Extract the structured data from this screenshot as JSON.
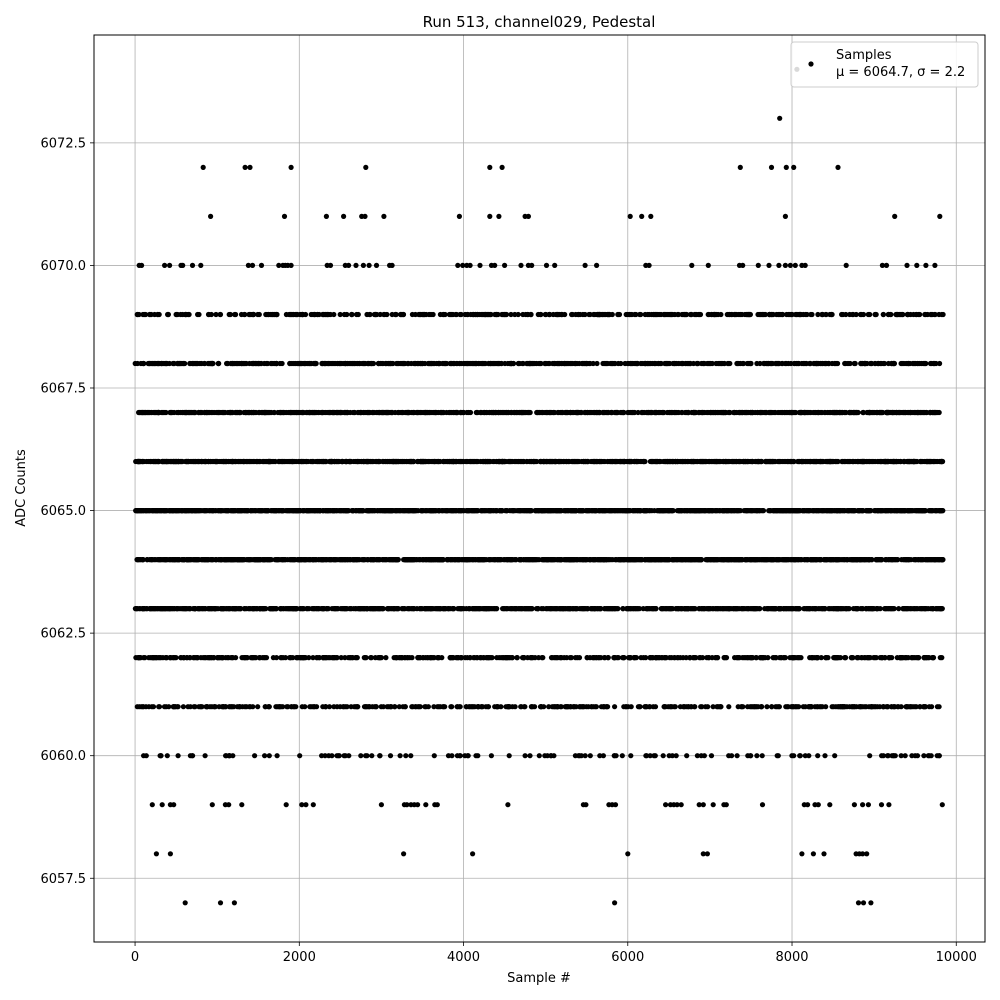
{
  "chart_data": {
    "type": "scatter",
    "title": "Run 513, channel029, Pedestal",
    "xlabel": "Sample #",
    "ylabel": "ADC Counts",
    "xlim": [
      -500,
      10350
    ],
    "ylim": [
      6056.2,
      6074.7
    ],
    "xticks": [
      0,
      2000,
      4000,
      6000,
      8000,
      10000
    ],
    "xtick_labels": [
      "0",
      "2000",
      "4000",
      "6000",
      "8000",
      "10000"
    ],
    "yticks": [
      6057.5,
      6060.0,
      6062.5,
      6065.0,
      6067.5,
      6070.0,
      6072.5
    ],
    "ytick_labels": [
      "6057.5",
      "6060.0",
      "6062.5",
      "6065.0",
      "6067.5",
      "6070.0",
      "6072.5"
    ],
    "grid": true,
    "legend_position": "upper right",
    "marker_color": "#000000",
    "series": [
      {
        "name": "Samples",
        "legend_line2": "μ = 6064.7, σ = 2.2",
        "mean": 6064.7,
        "sigma": 2.2,
        "n_samples": 9840,
        "points": [
          [
            50,
            6070
          ],
          [
            80,
            6070
          ],
          [
            360,
            6070
          ],
          [
            420,
            6070
          ],
          [
            560,
            6070
          ],
          [
            580,
            6070
          ],
          [
            700,
            6070
          ],
          [
            800,
            6070
          ],
          [
            1380,
            6070
          ],
          [
            1430,
            6070
          ],
          [
            1540,
            6070
          ],
          [
            1750,
            6070
          ],
          [
            1800,
            6070
          ],
          [
            1830,
            6070
          ],
          [
            1860,
            6070
          ],
          [
            1900,
            6070
          ],
          [
            2340,
            6070
          ],
          [
            2380,
            6070
          ],
          [
            2560,
            6070
          ],
          [
            2600,
            6070
          ],
          [
            2690,
            6070
          ],
          [
            2780,
            6070
          ],
          [
            2850,
            6070
          ],
          [
            2940,
            6070
          ],
          [
            3100,
            6070
          ],
          [
            3130,
            6070
          ],
          [
            3930,
            6070
          ],
          [
            3990,
            6070
          ],
          [
            4040,
            6070
          ],
          [
            4080,
            6070
          ],
          [
            4200,
            6070
          ],
          [
            4340,
            6070
          ],
          [
            4380,
            6070
          ],
          [
            4500,
            6070
          ],
          [
            4700,
            6070
          ],
          [
            4790,
            6070
          ],
          [
            4830,
            6070
          ],
          [
            5010,
            6070
          ],
          [
            5110,
            6070
          ],
          [
            5480,
            6070
          ],
          [
            5620,
            6070
          ],
          [
            6220,
            6070
          ],
          [
            6260,
            6070
          ],
          [
            6780,
            6070
          ],
          [
            6980,
            6070
          ],
          [
            7360,
            6070
          ],
          [
            7400,
            6070
          ],
          [
            7590,
            6070
          ],
          [
            7720,
            6070
          ],
          [
            7840,
            6070
          ],
          [
            7920,
            6070
          ],
          [
            7980,
            6070
          ],
          [
            8040,
            6070
          ],
          [
            8120,
            6070
          ],
          [
            8160,
            6070
          ],
          [
            8660,
            6070
          ],
          [
            9100,
            6070
          ],
          [
            9150,
            6070
          ],
          [
            9400,
            6070
          ],
          [
            9520,
            6070
          ],
          [
            9630,
            6070
          ],
          [
            9740,
            6070
          ],
          [
            920,
            6071
          ],
          [
            1820,
            6071
          ],
          [
            2330,
            6071
          ],
          [
            2540,
            6071
          ],
          [
            2760,
            6071
          ],
          [
            2800,
            6071
          ],
          [
            3030,
            6071
          ],
          [
            3950,
            6071
          ],
          [
            4320,
            6071
          ],
          [
            4430,
            6071
          ],
          [
            4750,
            6071
          ],
          [
            4790,
            6071
          ],
          [
            6030,
            6071
          ],
          [
            6170,
            6071
          ],
          [
            6280,
            6071
          ],
          [
            7920,
            6071
          ],
          [
            9250,
            6071
          ],
          [
            9800,
            6071
          ],
          [
            830,
            6072
          ],
          [
            1340,
            6072
          ],
          [
            1400,
            6072
          ],
          [
            1900,
            6072
          ],
          [
            2810,
            6072
          ],
          [
            4320,
            6072
          ],
          [
            4470,
            6072
          ],
          [
            7370,
            6072
          ],
          [
            7750,
            6072
          ],
          [
            7930,
            6072
          ],
          [
            8020,
            6072
          ],
          [
            8560,
            6072
          ],
          [
            7850,
            6073
          ],
          [
            8060,
            6074
          ],
          [
            260,
            6058
          ],
          [
            430,
            6058
          ],
          [
            3270,
            6058
          ],
          [
            4110,
            6058
          ],
          [
            6000,
            6058
          ],
          [
            6920,
            6058
          ],
          [
            6970,
            6058
          ],
          [
            8120,
            6058
          ],
          [
            8260,
            6058
          ],
          [
            8390,
            6058
          ],
          [
            8780,
            6058
          ],
          [
            8820,
            6058
          ],
          [
            8860,
            6058
          ],
          [
            8910,
            6058
          ],
          [
            610,
            6057
          ],
          [
            1040,
            6057
          ],
          [
            1210,
            6057
          ],
          [
            5840,
            6057
          ],
          [
            8810,
            6057
          ],
          [
            8870,
            6057
          ],
          [
            8960,
            6057
          ],
          [
            210,
            6059
          ],
          [
            330,
            6059
          ],
          [
            430,
            6059
          ],
          [
            470,
            6059
          ],
          [
            940,
            6059
          ],
          [
            1100,
            6059
          ],
          [
            1140,
            6059
          ],
          [
            1300,
            6059
          ],
          [
            1840,
            6059
          ],
          [
            2030,
            6059
          ],
          [
            2080,
            6059
          ],
          [
            2170,
            6059
          ],
          [
            3000,
            6059
          ],
          [
            3280,
            6059
          ],
          [
            3310,
            6059
          ],
          [
            3360,
            6059
          ],
          [
            3400,
            6059
          ],
          [
            3440,
            6059
          ],
          [
            3540,
            6059
          ],
          [
            3650,
            6059
          ],
          [
            3680,
            6059
          ],
          [
            4540,
            6059
          ],
          [
            5460,
            6059
          ],
          [
            5490,
            6059
          ],
          [
            5770,
            6059
          ],
          [
            5810,
            6059
          ],
          [
            5850,
            6059
          ],
          [
            6460,
            6059
          ],
          [
            6520,
            6059
          ],
          [
            6560,
            6059
          ],
          [
            6600,
            6059
          ],
          [
            6650,
            6059
          ],
          [
            6870,
            6059
          ],
          [
            6920,
            6059
          ],
          [
            7040,
            6059
          ],
          [
            7170,
            6059
          ],
          [
            7200,
            6059
          ],
          [
            7640,
            6059
          ],
          [
            8150,
            6059
          ],
          [
            8190,
            6059
          ],
          [
            8280,
            6059
          ],
          [
            8320,
            6059
          ],
          [
            8460,
            6059
          ],
          [
            8760,
            6059
          ],
          [
            8860,
            6059
          ],
          [
            8930,
            6059
          ],
          [
            9090,
            6059
          ],
          [
            9180,
            6059
          ],
          [
            9830,
            6059
          ]
        ],
        "dense_rows": [
          {
            "y": 6060,
            "count": 130
          },
          {
            "y": 6061,
            "count": 420
          },
          {
            "y": 6062,
            "count": 520
          },
          {
            "y": 6063,
            "count": 880
          },
          {
            "y": 6064,
            "count": 1300
          },
          {
            "y": 6065,
            "count": 1300
          },
          {
            "y": 6066,
            "count": 1150
          },
          {
            "y": 6067,
            "count": 900
          },
          {
            "y": 6068,
            "count": 650
          },
          {
            "y": 6069,
            "count": 450
          }
        ]
      }
    ]
  }
}
